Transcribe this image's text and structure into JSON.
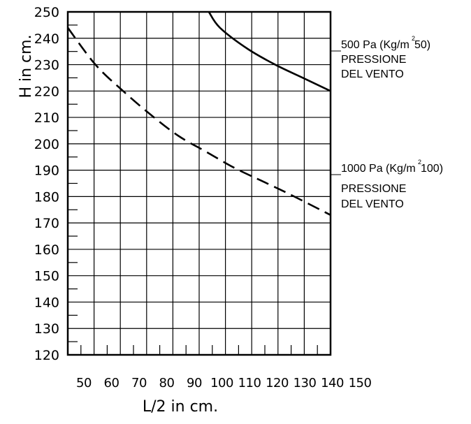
{
  "chart_data": {
    "type": "line",
    "xlabel": "L/2 in cm.",
    "ylabel": "H in cm.",
    "xlim": [
      45,
      140
    ],
    "ylim": [
      120,
      250
    ],
    "x_ticks": [
      "50",
      "60",
      "70",
      "80",
      "90",
      "100",
      "110",
      "120",
      "130",
      "140",
      "150"
    ],
    "y_ticks": [
      120,
      130,
      140,
      150,
      160,
      170,
      180,
      190,
      200,
      210,
      220,
      230,
      240,
      250
    ],
    "grid": true,
    "series": [
      {
        "name": "500 Pa (Kg/m²50) PRESSIONE DEL VENTO",
        "label_lines": [
          "500 Pa (Kg/m",
          "2",
          "50)",
          "PRESSIONE",
          "DEL VENTO"
        ],
        "style": "solid",
        "x": [
          96,
          100,
          110,
          120,
          130,
          140
        ],
        "y": [
          250,
          244,
          236,
          230,
          225,
          220
        ]
      },
      {
        "name": "1000 Pa (Kg/m²100) PRESSIONE DEL VENTO",
        "label_lines": [
          "1000 Pa (Kg/m",
          "2",
          "100)",
          "PRESSIONE",
          "DEL VENTO"
        ],
        "style": "dashed",
        "x": [
          45,
          55,
          65,
          75,
          85,
          95,
          105,
          115,
          125,
          140
        ],
        "y": [
          244,
          230,
          220,
          211,
          203,
          197,
          191,
          186,
          181,
          173
        ]
      }
    ]
  }
}
